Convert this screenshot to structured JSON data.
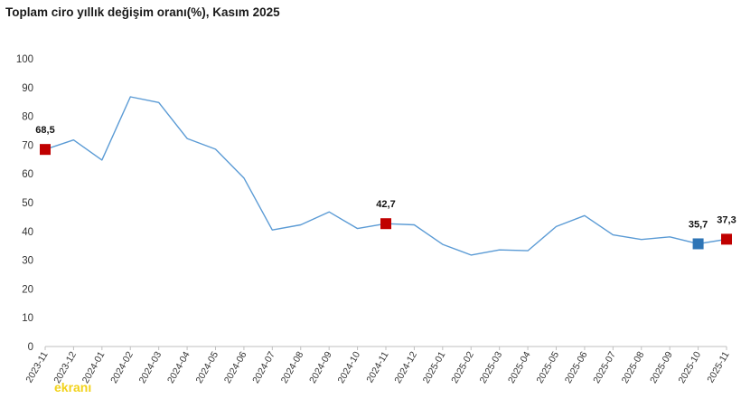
{
  "chart_data": {
    "type": "line",
    "title": "Toplam ciro yıllık değişim oranı(%), Kasım 2025",
    "xlabel": "",
    "ylabel": "",
    "ylim": [
      0,
      100
    ],
    "yticks": [
      0,
      10,
      20,
      30,
      40,
      50,
      60,
      70,
      80,
      90,
      100
    ],
    "categories": [
      "2023-11",
      "2023-12",
      "2024-01",
      "2024-02",
      "2024-03",
      "2024-04",
      "2024-05",
      "2024-06",
      "2024-07",
      "2024-08",
      "2024-09",
      "2024-10",
      "2024-11",
      "2024-12",
      "2025-01",
      "2025-02",
      "2025-03",
      "2025-04",
      "2025-05",
      "2025-06",
      "2025-07",
      "2025-08",
      "2025-09",
      "2025-10",
      "2025-11"
    ],
    "series": [
      {
        "values": [
          68.5,
          71.8,
          64.8,
          86.8,
          84.8,
          72.3,
          68.6,
          58.6,
          40.5,
          42.3,
          46.8,
          41.0,
          42.7,
          42.3,
          35.5,
          31.8,
          33.6,
          33.3,
          41.7,
          45.5,
          38.8,
          37.2,
          38.1,
          35.7,
          37.3
        ],
        "color": "#5b9bd5"
      }
    ],
    "highlights": [
      {
        "index": 0,
        "label": "68,5",
        "color": "#c00000"
      },
      {
        "index": 12,
        "label": "42,7",
        "color": "#c00000"
      },
      {
        "index": 23,
        "label": "35,7",
        "color": "#2e75b6"
      },
      {
        "index": 24,
        "label": "37,3",
        "color": "#c00000"
      }
    ],
    "grid": false,
    "legend": "none"
  },
  "watermark": "ekranı"
}
